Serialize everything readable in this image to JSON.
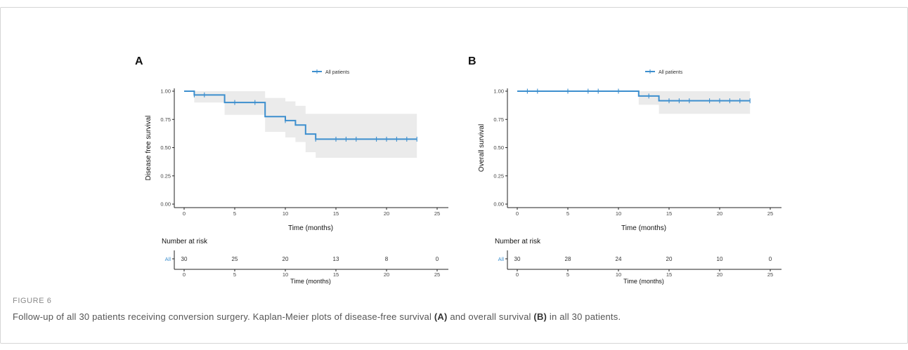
{
  "figure": {
    "label": "FIGURE 6",
    "caption_1": "Follow-up of all 30 patients receiving conversion surgery. Kaplan-Meier plots of disease-free survival ",
    "caption_a": "(A)",
    "caption_2": " and overall survival ",
    "caption_b": "(B)",
    "caption_3": " in all 30 patients."
  },
  "colors": {
    "curve": "#3d8fce",
    "ci": "#ebebeb",
    "axis": "#222222",
    "risk_label": "#3d8fce"
  },
  "chart_data": [
    {
      "panel": "A",
      "type": "line",
      "legend": "All patients",
      "legend_position": "top",
      "xlabel": "Time (months)",
      "ylabel": "Disease free survival",
      "xlim": [
        0,
        25
      ],
      "ylim": [
        0,
        1
      ],
      "x_ticks": [
        "0",
        "5",
        "10",
        "15",
        "20",
        "25"
      ],
      "y_ticks": [
        "0.00",
        "0.25",
        "0.50",
        "0.75",
        "1.00"
      ],
      "series": [
        {
          "step_x": [
            0,
            1,
            4,
            8,
            10,
            11,
            12,
            13,
            23
          ],
          "step_y": [
            1.0,
            0.967,
            0.9,
            0.775,
            0.74,
            0.7,
            0.62,
            0.575,
            0.575
          ],
          "ci_lower": [
            1.0,
            0.9,
            0.79,
            0.64,
            0.59,
            0.55,
            0.46,
            0.41,
            0.41
          ],
          "ci_upper": [
            1.0,
            1.0,
            1.0,
            0.94,
            0.91,
            0.87,
            0.8,
            0.8,
            0.8
          ],
          "censor_x": [
            1,
            2,
            5,
            7,
            10,
            13,
            15,
            16,
            17,
            19,
            20,
            21,
            22,
            23
          ],
          "censor_y": [
            0.967,
            0.967,
            0.9,
            0.9,
            0.74,
            0.575,
            0.575,
            0.575,
            0.575,
            0.575,
            0.575,
            0.575,
            0.575,
            0.575
          ]
        }
      ],
      "risk_table": {
        "title": "Number at risk",
        "strata_label": "All",
        "times": [
          0,
          5,
          10,
          15,
          20,
          25
        ],
        "counts": [
          "30",
          "25",
          "20",
          "13",
          "8",
          "0"
        ],
        "xlabel": "Time (months)"
      }
    },
    {
      "panel": "B",
      "type": "line",
      "legend": "All patients",
      "legend_position": "top",
      "xlabel": "Time (months)",
      "ylabel": "Overall survival",
      "xlim": [
        0,
        25
      ],
      "ylim": [
        0,
        1
      ],
      "x_ticks": [
        "0",
        "5",
        "10",
        "15",
        "20",
        "25"
      ],
      "y_ticks": [
        "0.00",
        "0.25",
        "0.50",
        "0.75",
        "1.00"
      ],
      "series": [
        {
          "step_x": [
            0,
            12,
            14,
            23
          ],
          "step_y": [
            1.0,
            0.957,
            0.915,
            0.915
          ],
          "ci_lower": [
            1.0,
            0.88,
            0.8,
            0.8
          ],
          "ci_upper": [
            1.0,
            1.0,
            1.0,
            1.0
          ],
          "censor_x": [
            1,
            2,
            5,
            7,
            8,
            10,
            13,
            15,
            16,
            17,
            19,
            20,
            21,
            22,
            23
          ],
          "censor_y": [
            1.0,
            1.0,
            1.0,
            1.0,
            1.0,
            1.0,
            0.957,
            0.915,
            0.915,
            0.915,
            0.915,
            0.915,
            0.915,
            0.915,
            0.915
          ]
        }
      ],
      "risk_table": {
        "title": "Number at risk",
        "strata_label": "All",
        "times": [
          0,
          5,
          10,
          15,
          20,
          25
        ],
        "counts": [
          "30",
          "28",
          "24",
          "20",
          "10",
          "0"
        ],
        "xlabel": "Time (months)"
      }
    }
  ]
}
